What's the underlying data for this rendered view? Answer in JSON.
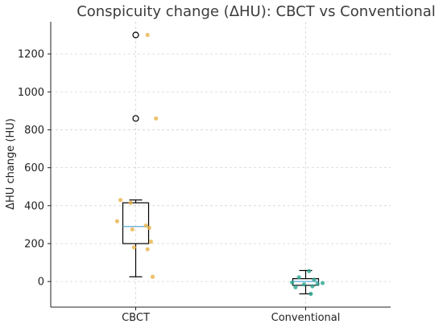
{
  "chart_data": {
    "type": "box",
    "title": "Conspicuity change (ΔHU): CBCT vs Conventional",
    "xlabel": "",
    "ylabel": "ΔHU change (HU)",
    "categories": [
      "CBCT",
      "Conventional"
    ],
    "ylim": [
      -135,
      1370
    ],
    "yticks": [
      0,
      200,
      400,
      600,
      800,
      1000,
      1200
    ],
    "grid": true,
    "boxes": [
      {
        "name": "CBCT",
        "whisker_low": 25,
        "q1": 200,
        "median": 290,
        "q3": 415,
        "whisker_high": 430,
        "fliers": [
          860,
          1300
        ],
        "color": "#e8b34a"
      },
      {
        "name": "Conventional",
        "whisker_low": -65,
        "q1": -20,
        "median": 0,
        "q3": 15,
        "whisker_high": 58,
        "fliers": [],
        "color": "#2aa58f"
      }
    ],
    "points": [
      {
        "series": "CBCT",
        "jitter": 0.07,
        "y": 1300
      },
      {
        "series": "CBCT",
        "jitter": 0.12,
        "y": 860
      },
      {
        "series": "CBCT",
        "jitter": -0.09,
        "y": 430
      },
      {
        "series": "CBCT",
        "jitter": -0.03,
        "y": 415
      },
      {
        "series": "CBCT",
        "jitter": -0.11,
        "y": 318
      },
      {
        "series": "CBCT",
        "jitter": 0.06,
        "y": 295
      },
      {
        "series": "CBCT",
        "jitter": 0.08,
        "y": 283
      },
      {
        "series": "CBCT",
        "jitter": -0.02,
        "y": 275
      },
      {
        "series": "CBCT",
        "jitter": 0.09,
        "y": 210
      },
      {
        "series": "CBCT",
        "jitter": -0.01,
        "y": 180
      },
      {
        "series": "CBCT",
        "jitter": 0.07,
        "y": 170
      },
      {
        "series": "CBCT",
        "jitter": 0.1,
        "y": 25
      },
      {
        "series": "Conventional",
        "jitter": 0.02,
        "y": 55
      },
      {
        "series": "Conventional",
        "jitter": -0.04,
        "y": 22
      },
      {
        "series": "Conventional",
        "jitter": 0.05,
        "y": 10
      },
      {
        "series": "Conventional",
        "jitter": -0.08,
        "y": -5
      },
      {
        "series": "Conventional",
        "jitter": 0.07,
        "y": -12
      },
      {
        "series": "Conventional",
        "jitter": -0.01,
        "y": -15
      },
      {
        "series": "Conventional",
        "jitter": 0.1,
        "y": -8
      },
      {
        "series": "Conventional",
        "jitter": 0.04,
        "y": -25
      },
      {
        "series": "Conventional",
        "jitter": -0.06,
        "y": -30
      },
      {
        "series": "Conventional",
        "jitter": 0.03,
        "y": -65
      }
    ]
  }
}
